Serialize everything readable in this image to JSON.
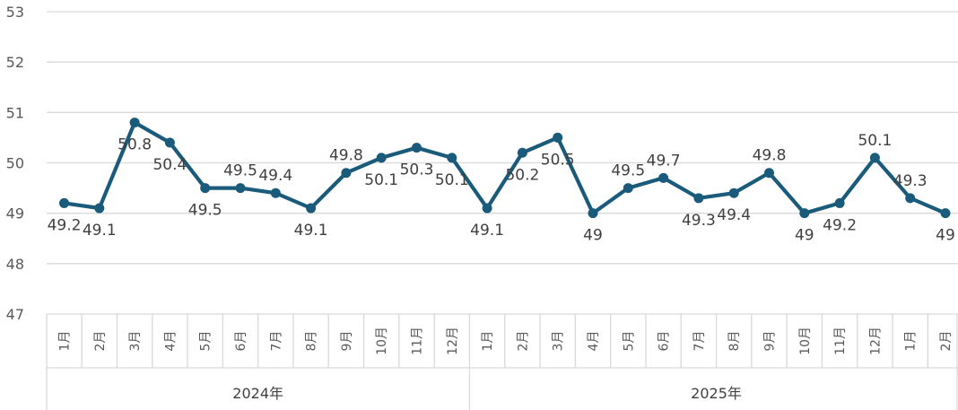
{
  "chart_data": {
    "type": "line",
    "title": "",
    "ylim": [
      47,
      53
    ],
    "yticks": [
      "47",
      "48",
      "49",
      "50",
      "51",
      "52",
      "53"
    ],
    "grid": true,
    "groups": [
      {
        "label": "2024年",
        "count": 12
      },
      {
        "label": "2025年",
        "count": 14
      }
    ],
    "categories": [
      "1月",
      "2月",
      "3月",
      "4月",
      "5月",
      "6月",
      "7月",
      "8月",
      "9月",
      "10月",
      "11月",
      "12月",
      "1月",
      "2月",
      "3月",
      "4月",
      "5月",
      "6月",
      "7月",
      "8月",
      "9月",
      "10月",
      "11月",
      "12月",
      "1月",
      "2月"
    ],
    "series": [
      {
        "values": [
          49.2,
          49.1,
          50.8,
          50.4,
          49.5,
          49.5,
          49.4,
          49.1,
          49.8,
          50.1,
          50.3,
          50.1,
          49.1,
          50.2,
          50.5,
          49,
          49.5,
          49.7,
          49.3,
          49.4,
          49.8,
          49,
          49.2,
          50.1,
          49.3,
          49
        ],
        "labels": [
          "49.2",
          "49.1",
          "50.8",
          "50.4",
          "49.5",
          "49.5",
          "49.4",
          "49.1",
          "49.8",
          "50.1",
          "50.3",
          "50.1",
          "49.1",
          "50.2",
          "50.5",
          "49",
          "49.5",
          "49.7",
          "49.3",
          "49.4",
          "49.8",
          "49",
          "49.2",
          "50.1",
          "49.3",
          "49"
        ],
        "color": "#1a5a7a"
      }
    ],
    "colors": {
      "line": "#1a5a7a",
      "grid": "#d9d9d9",
      "axis_text": "#595959"
    }
  }
}
